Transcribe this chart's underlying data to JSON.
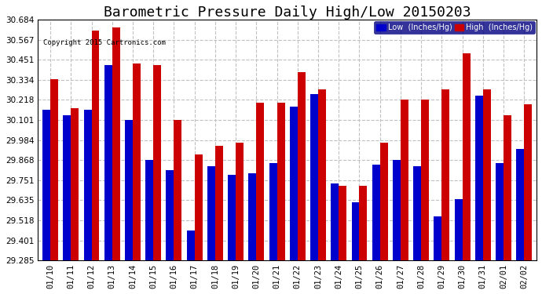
{
  "title": "Barometric Pressure Daily High/Low 20150203",
  "copyright": "Copyright 2015 Cartronics.com",
  "categories": [
    "01/10",
    "01/11",
    "01/12",
    "01/13",
    "01/14",
    "01/15",
    "01/16",
    "01/17",
    "01/18",
    "01/19",
    "01/20",
    "01/21",
    "01/22",
    "01/23",
    "01/24",
    "01/25",
    "01/26",
    "01/27",
    "01/28",
    "01/29",
    "01/30",
    "01/31",
    "02/01",
    "02/02"
  ],
  "low": [
    30.16,
    30.13,
    30.16,
    30.42,
    30.1,
    29.87,
    29.81,
    29.46,
    29.83,
    29.78,
    29.79,
    29.85,
    30.18,
    30.25,
    29.73,
    29.62,
    29.84,
    29.87,
    29.83,
    29.54,
    29.64,
    30.24,
    29.85,
    29.93
  ],
  "high": [
    30.34,
    30.17,
    30.62,
    30.64,
    30.43,
    30.42,
    30.1,
    29.9,
    29.95,
    29.97,
    30.2,
    30.2,
    30.38,
    30.28,
    29.72,
    29.72,
    29.97,
    30.22,
    30.22,
    30.28,
    30.49,
    30.28,
    30.13,
    30.19
  ],
  "ylim": [
    29.285,
    30.684
  ],
  "yticks": [
    29.285,
    29.401,
    29.518,
    29.635,
    29.751,
    29.868,
    29.984,
    30.101,
    30.218,
    30.334,
    30.451,
    30.567,
    30.684
  ],
  "low_color": "#0000cc",
  "high_color": "#cc0000",
  "bg_color": "#ffffff",
  "grid_color": "#c0c0c0",
  "title_fontsize": 13,
  "legend_low_label": "Low  (Inches/Hg)",
  "legend_high_label": "High  (Inches/Hg)"
}
